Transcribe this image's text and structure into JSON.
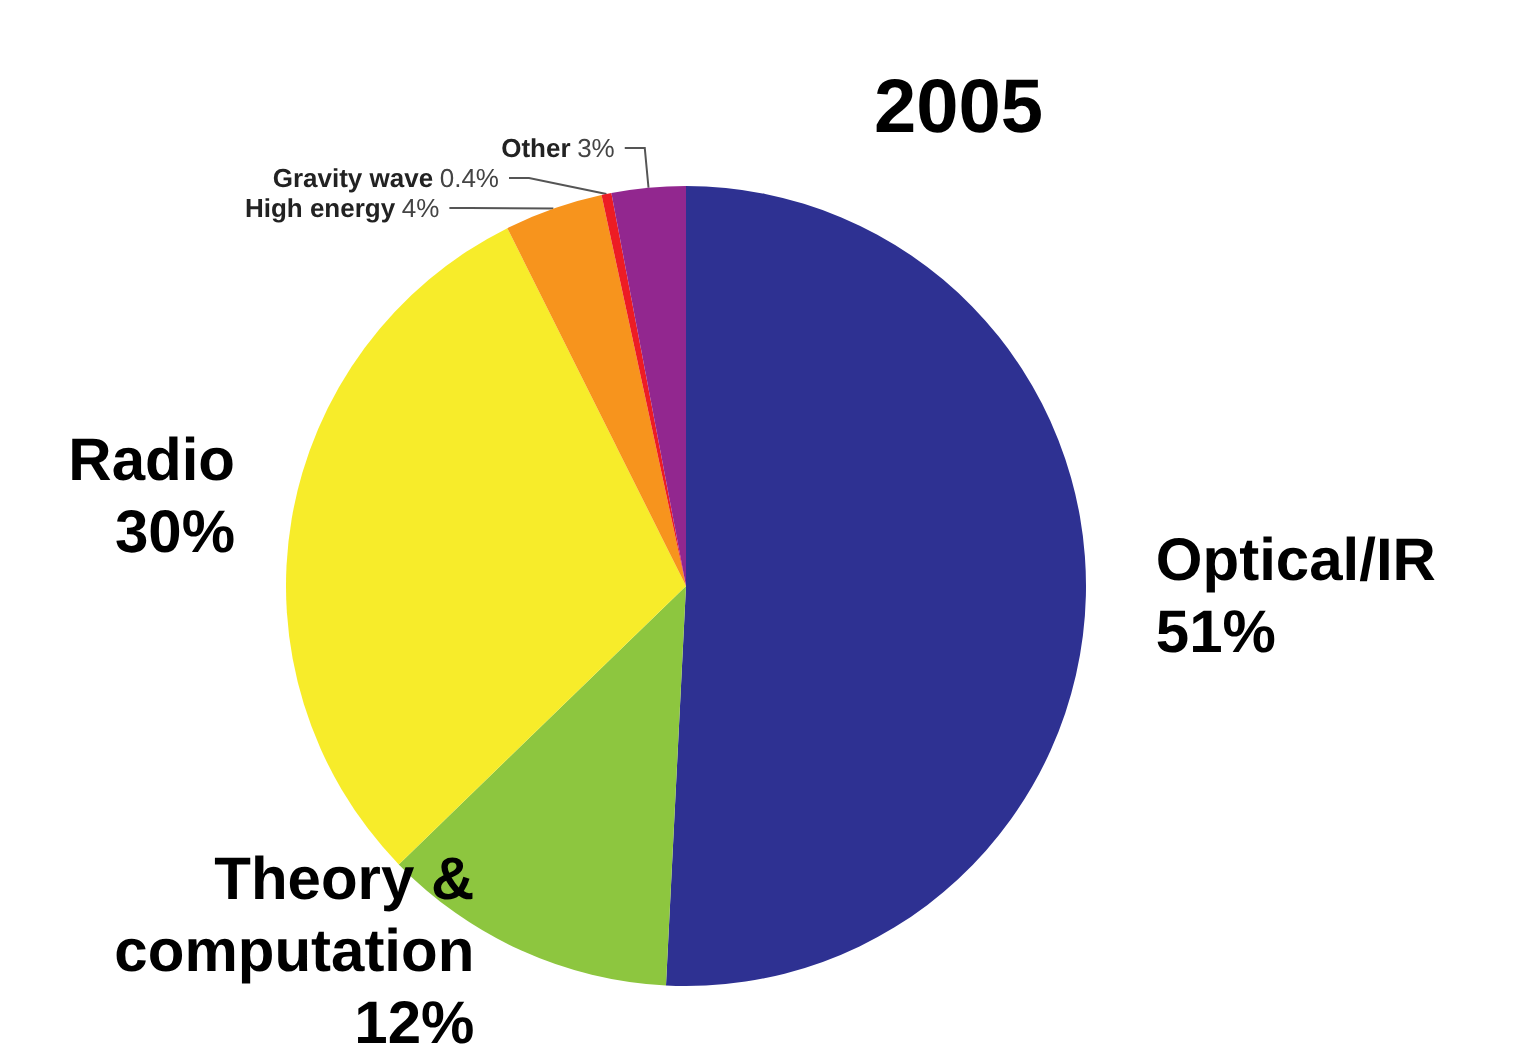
{
  "chart_data": {
    "type": "pie",
    "title": "2005",
    "categories": [
      "Optical/IR",
      "Theory & computation",
      "Radio",
      "High energy",
      "Gravity wave",
      "Other"
    ],
    "values": [
      51,
      12,
      30,
      4,
      0.4,
      3
    ],
    "value_labels": [
      "51%",
      "12%",
      "30%",
      "4%",
      "0.4%",
      "3%"
    ],
    "colors": [
      "#2e3192",
      "#8dc63f",
      "#f7ec2a",
      "#f7941d",
      "#ed1c24",
      "#92278f"
    ],
    "legend": false
  }
}
